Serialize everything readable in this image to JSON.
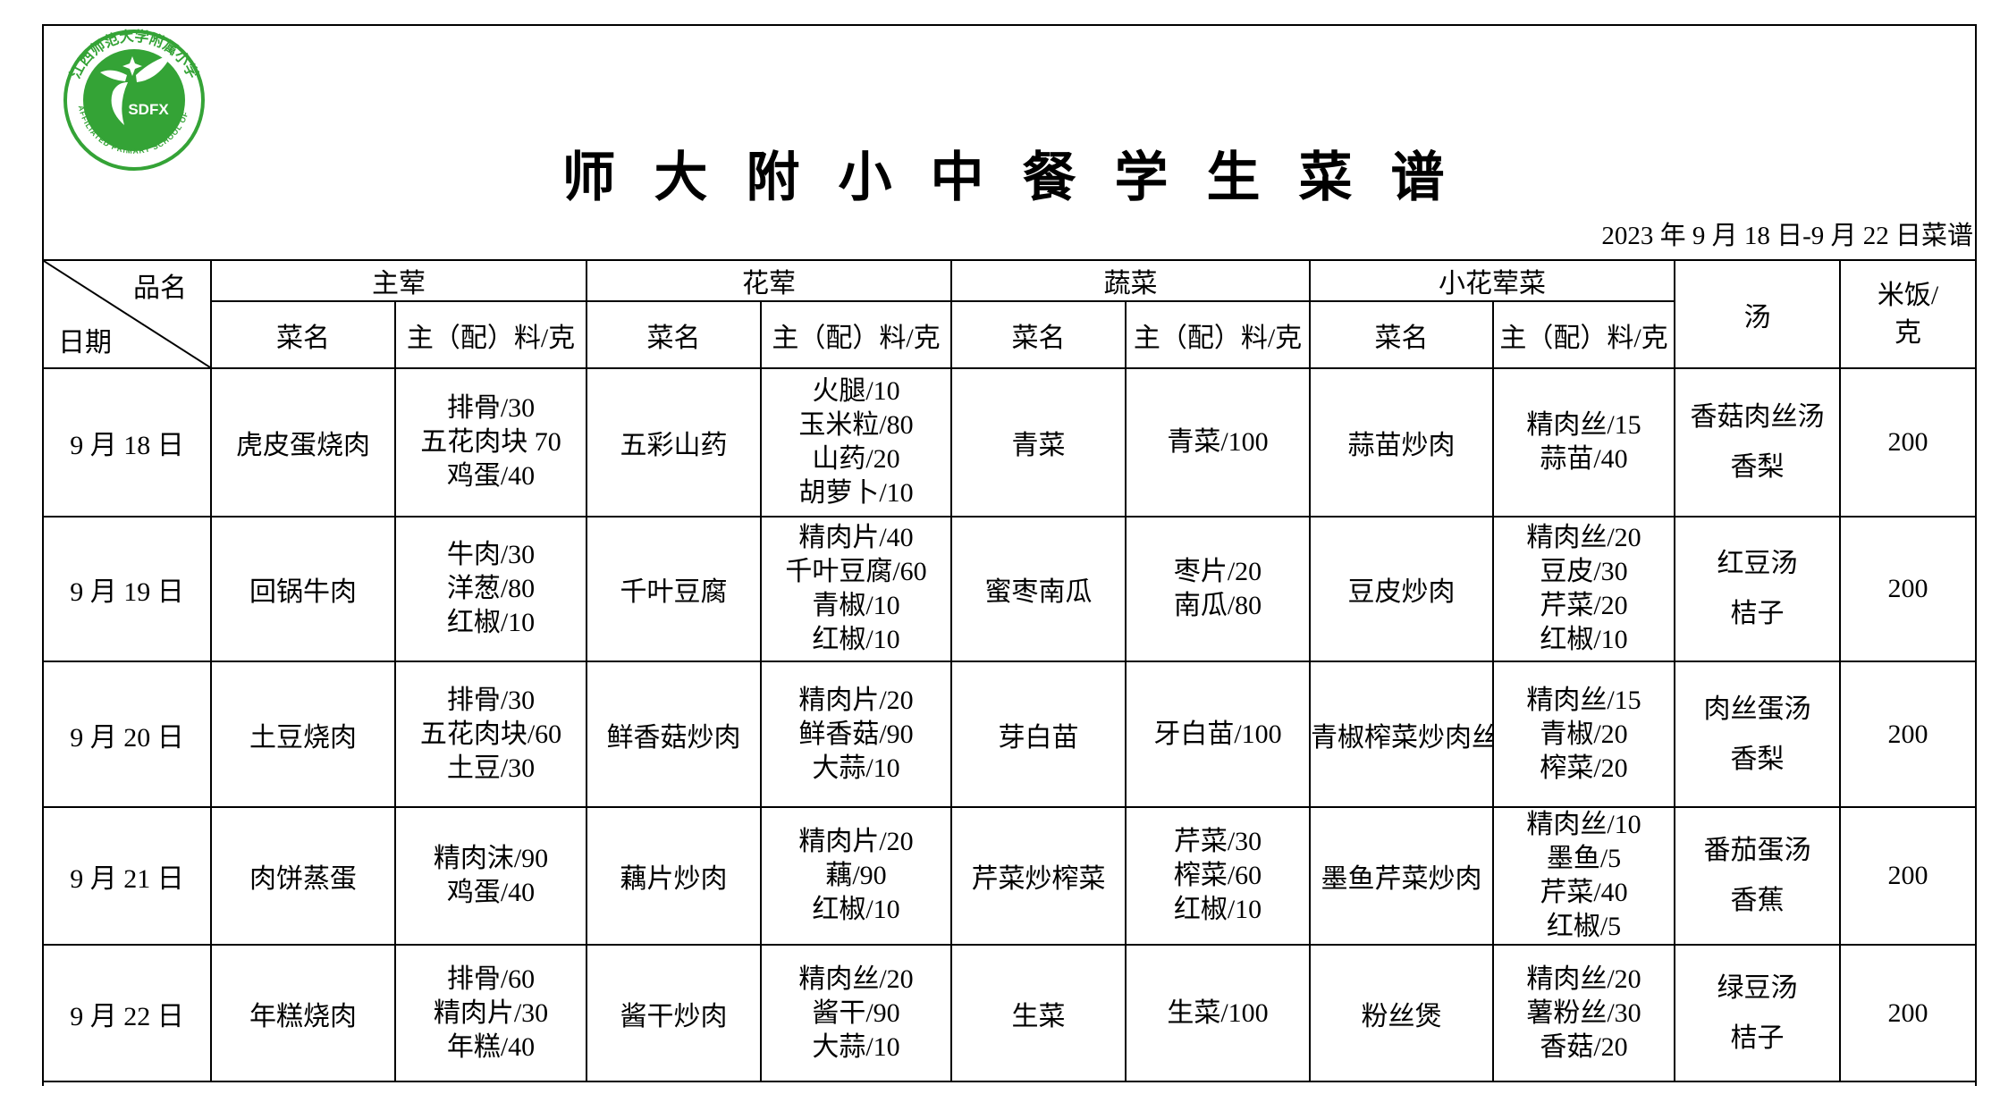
{
  "page": {
    "title": "师 大 附 小 中 餐 学 生 菜 谱",
    "date_range": "2023 年 9 月 18 日-9 月 22 日菜谱"
  },
  "logo": {
    "arc_top": "江西师范大学附属小学",
    "arc_bottom": "THE AFFILIATED PRIMARY SCHOOL OF JXNU",
    "monogram": "SDFX",
    "green": "#34a336"
  },
  "table": {
    "corner": {
      "top_label": "品名",
      "bottom_label": "日期"
    },
    "groups": [
      {
        "label": "主荤",
        "sub": [
          "菜名",
          "主（配）料/克"
        ]
      },
      {
        "label": "花荤",
        "sub": [
          "菜名",
          "主（配）料/克"
        ]
      },
      {
        "label": "蔬菜",
        "sub": [
          "菜名",
          "主（配）料/克"
        ]
      },
      {
        "label": "小花荤菜",
        "sub": [
          "菜名",
          "主（配）料/克"
        ]
      }
    ],
    "soup_label": "汤",
    "rice_label_lines": [
      "米饭/",
      "克"
    ],
    "rows": [
      {
        "date": "9 月 18 日",
        "cells": [
          {
            "name": "虎皮蛋烧肉",
            "ings": [
              "排骨/30",
              "五花肉块 70",
              "鸡蛋/40"
            ]
          },
          {
            "name": "五彩山药",
            "ings": [
              "火腿/10",
              "玉米粒/80",
              "山药/20",
              "胡萝卜/10"
            ]
          },
          {
            "name": "青菜",
            "ings": [
              "青菜/100"
            ]
          },
          {
            "name": "蒜苗炒肉",
            "ings": [
              "精肉丝/15",
              "蒜苗/40"
            ]
          }
        ],
        "soup": [
          "香菇肉丝汤",
          "香梨"
        ],
        "rice": "200"
      },
      {
        "date": "9 月 19 日",
        "cells": [
          {
            "name": "回锅牛肉",
            "ings": [
              "牛肉/30",
              "洋葱/80",
              "红椒/10"
            ]
          },
          {
            "name": "千叶豆腐",
            "ings": [
              "精肉片/40",
              "千叶豆腐/60",
              "青椒/10",
              "红椒/10"
            ]
          },
          {
            "name": "蜜枣南瓜",
            "ings": [
              "枣片/20",
              "南瓜/80"
            ]
          },
          {
            "name": "豆皮炒肉",
            "ings": [
              "精肉丝/20",
              "豆皮/30",
              "芹菜/20",
              "红椒/10"
            ]
          }
        ],
        "soup": [
          "红豆汤",
          "桔子"
        ],
        "rice": "200"
      },
      {
        "date": "9 月 20 日",
        "cells": [
          {
            "name": "土豆烧肉",
            "ings": [
              "排骨/30",
              "五花肉块/60",
              "土豆/30"
            ]
          },
          {
            "name": "鲜香菇炒肉",
            "ings": [
              "精肉片/20",
              "鲜香菇/90",
              "大蒜/10"
            ]
          },
          {
            "name": "芽白苗",
            "ings": [
              "牙白苗/100"
            ]
          },
          {
            "name": "青椒榨菜炒肉丝",
            "ings": [
              "精肉丝/15",
              "青椒/20",
              "榨菜/20"
            ]
          }
        ],
        "soup": [
          "肉丝蛋汤",
          "香梨"
        ],
        "rice": "200"
      },
      {
        "date": "9 月 21 日",
        "cells": [
          {
            "name": "肉饼蒸蛋",
            "ings": [
              "精肉沫/90",
              "鸡蛋/40"
            ]
          },
          {
            "name": "藕片炒肉",
            "ings": [
              "精肉片/20",
              "藕/90",
              "红椒/10"
            ]
          },
          {
            "name": "芹菜炒榨菜",
            "ings": [
              "芹菜/30",
              "榨菜/60",
              "红椒/10"
            ]
          },
          {
            "name": "墨鱼芹菜炒肉",
            "ings": [
              "精肉丝/10",
              "墨鱼/5",
              "芹菜/40",
              "红椒/5"
            ]
          }
        ],
        "soup": [
          "番茄蛋汤",
          "香蕉"
        ],
        "rice": "200"
      },
      {
        "date": "9 月 22 日",
        "cells": [
          {
            "name": "年糕烧肉",
            "ings": [
              "排骨/60",
              "精肉片/30",
              "年糕/40"
            ]
          },
          {
            "name": "酱干炒肉",
            "ings": [
              "精肉丝/20",
              "酱干/90",
              "大蒜/10"
            ]
          },
          {
            "name": "生菜",
            "ings": [
              "生菜/100"
            ]
          },
          {
            "name": "粉丝煲",
            "ings": [
              "精肉丝/20",
              "薯粉丝/30",
              "香菇/20"
            ]
          }
        ],
        "soup": [
          "绿豆汤",
          "桔子"
        ],
        "rice": "200"
      }
    ]
  }
}
